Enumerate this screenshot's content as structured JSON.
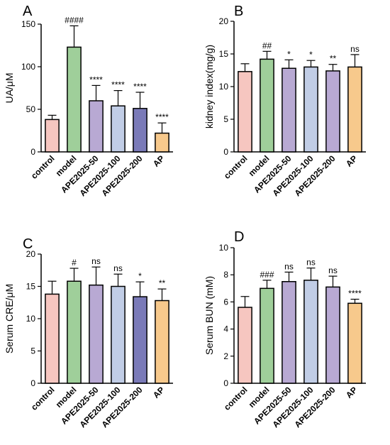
{
  "chart_data": [
    {
      "panel": "A",
      "type": "bar",
      "categories": [
        "control",
        "model",
        "APE2025-50",
        "APE2025-100",
        "APE2025-200",
        "AP"
      ],
      "values": [
        38,
        123,
        60,
        54,
        51,
        22
      ],
      "errors": [
        5,
        25,
        18,
        18,
        19,
        12
      ],
      "annotations": [
        "",
        "####",
        "****",
        "****",
        "****",
        "****"
      ],
      "ylabel": "UA/μM",
      "ylim": [
        0,
        150
      ],
      "yticks": [
        0,
        50,
        100,
        150
      ],
      "colors": [
        "#f6c6c0",
        "#9fcf9a",
        "#b8a9d3",
        "#c1cde6",
        "#7a7ab8",
        "#f7c98c"
      ]
    },
    {
      "panel": "B",
      "type": "bar",
      "categories": [
        "control",
        "model",
        "APE2025-50",
        "APE2025-100",
        "APE2025-200",
        "AP"
      ],
      "values": [
        12.3,
        14.2,
        12.8,
        13.0,
        12.4,
        13.0
      ],
      "errors": [
        1.2,
        1.2,
        1.3,
        1.0,
        1.0,
        1.9
      ],
      "annotations": [
        "",
        "##",
        "*",
        "*",
        "**",
        "ns"
      ],
      "ylabel": "kidney index(mg/g)",
      "ylim": [
        0,
        20
      ],
      "yticks": [
        0,
        5,
        10,
        15,
        20
      ],
      "colors": [
        "#f6c6c0",
        "#9fcf9a",
        "#b8a9d3",
        "#c1cde6",
        "#b8a9d3",
        "#f7c98c"
      ]
    },
    {
      "panel": "C",
      "type": "bar",
      "categories": [
        "control",
        "model",
        "APE2025-50",
        "APE2025-100",
        "APE2025-200",
        "AP"
      ],
      "values": [
        13.8,
        15.8,
        15.2,
        15.0,
        13.4,
        12.8
      ],
      "errors": [
        2.0,
        2.0,
        2.8,
        1.9,
        2.3,
        1.8
      ],
      "annotations": [
        "",
        "#",
        "ns",
        "ns",
        "*",
        "**"
      ],
      "ylabel": "Serum CRE/μM",
      "ylim": [
        0,
        20
      ],
      "yticks": [
        0,
        5,
        10,
        15,
        20
      ],
      "colors": [
        "#f6c6c0",
        "#9fcf9a",
        "#b8a9d3",
        "#c1cde6",
        "#7a7ab8",
        "#f7c98c"
      ]
    },
    {
      "panel": "D",
      "type": "bar",
      "categories": [
        "control",
        "model",
        "APE2025-50",
        "APE2025-100",
        "APE2025-200",
        "AP"
      ],
      "values": [
        5.6,
        7.0,
        7.5,
        7.6,
        7.1,
        5.9
      ],
      "errors": [
        0.8,
        0.6,
        0.7,
        0.9,
        0.8,
        0.3
      ],
      "annotations": [
        "",
        "###",
        "ns",
        "ns",
        "ns",
        "****"
      ],
      "ylabel": "Serum BUN (mM)",
      "ylim": [
        0,
        10
      ],
      "yticks": [
        0,
        2,
        4,
        6,
        8,
        10
      ],
      "colors": [
        "#f6c6c0",
        "#9fcf9a",
        "#b8a9d3",
        "#c1cde6",
        "#b8a9d3",
        "#f7c98c"
      ]
    }
  ]
}
